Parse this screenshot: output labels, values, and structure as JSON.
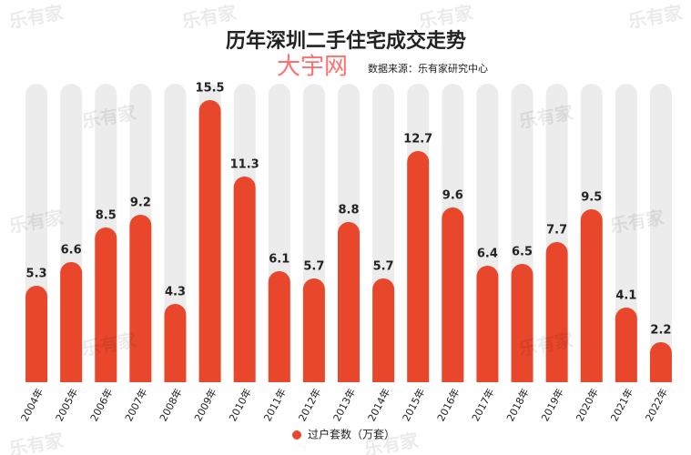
{
  "chart_data": {
    "type": "bar",
    "title": "历年深圳二手住宅成交走势",
    "subtitle": "数据来源：乐有家研究中心",
    "watermarks": [
      "乐有家",
      "大宇网"
    ],
    "categories": [
      "2004年",
      "2005年",
      "2006年",
      "2007年",
      "2008年",
      "2009年",
      "2010年",
      "2011年",
      "2012年",
      "2013年",
      "2014年",
      "2015年",
      "2016年",
      "2017年",
      "2018年",
      "2019年",
      "2020年",
      "2021年",
      "2022年"
    ],
    "series": [
      {
        "name": "过户套数（万套）",
        "color": "#e9472b",
        "values": [
          5.3,
          6.6,
          8.5,
          9.2,
          4.3,
          15.5,
          11.3,
          6.1,
          5.7,
          8.8,
          5.7,
          12.7,
          9.6,
          6.4,
          6.5,
          7.7,
          9.5,
          4.1,
          2.2
        ]
      }
    ],
    "ylim": [
      0,
      16
    ],
    "track_color": "#ececec",
    "legend": "bottom"
  }
}
